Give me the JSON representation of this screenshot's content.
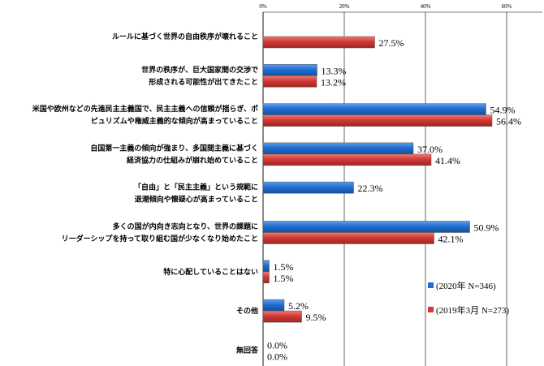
{
  "chart_data": {
    "type": "bar",
    "orientation": "horizontal",
    "title": "",
    "xlabel": "",
    "ylabel": "",
    "xlim": [
      0,
      60
    ],
    "x_ticks": [
      "0%",
      "20%",
      "40%",
      "60%"
    ],
    "grid": true,
    "legend_position": "bottom-right",
    "categories": [
      [
        "ルールに基づく世界の自由秩序が壊れること"
      ],
      [
        "世界の秩序が、巨大国家間の交渉で",
        "形成される可能性が出てきたこと"
      ],
      [
        "米国や欧州などの先進民主主義国で、民主主義への信頼が揺らぎ、ポ",
        "ピュリズムや権威主義的な傾向が高まっていること"
      ],
      [
        "自国第一主義の傾向が強まり、多国間主義に基づく",
        "経済協力の仕組みが崩れ始めていること"
      ],
      [
        "「自由」と「民主主義」という規範に",
        "退潮傾向や懐疑心が高まっていること"
      ],
      [
        "多くの国が内向き志向となり、世界の課題に",
        "リーダーシップを持って取り組む国が少なくなり始めたこと"
      ],
      [
        "特に心配していることはない"
      ],
      [
        "その他"
      ],
      [
        "無回答"
      ]
    ],
    "series": [
      {
        "name": "(2020年 N=346)",
        "color": "#1f6fd1",
        "values": [
          null,
          13.3,
          54.9,
          37.0,
          22.3,
          50.9,
          1.5,
          5.2,
          0.0
        ],
        "labels": [
          "",
          "13.3%",
          "54.9%",
          "37.0%",
          "22.3%",
          "50.9%",
          "1.5%",
          "5.2%",
          "0.0%"
        ]
      },
      {
        "name": "(2019年3月 N=273)",
        "color": "#d23a36",
        "values": [
          27.5,
          13.2,
          56.4,
          41.4,
          null,
          42.1,
          1.5,
          9.5,
          0.0
        ],
        "labels": [
          "27.5%",
          "13.2%",
          "56.4%",
          "41.4%",
          "",
          "42.1%",
          "1.5%",
          "9.5%",
          "0.0%"
        ]
      }
    ]
  }
}
